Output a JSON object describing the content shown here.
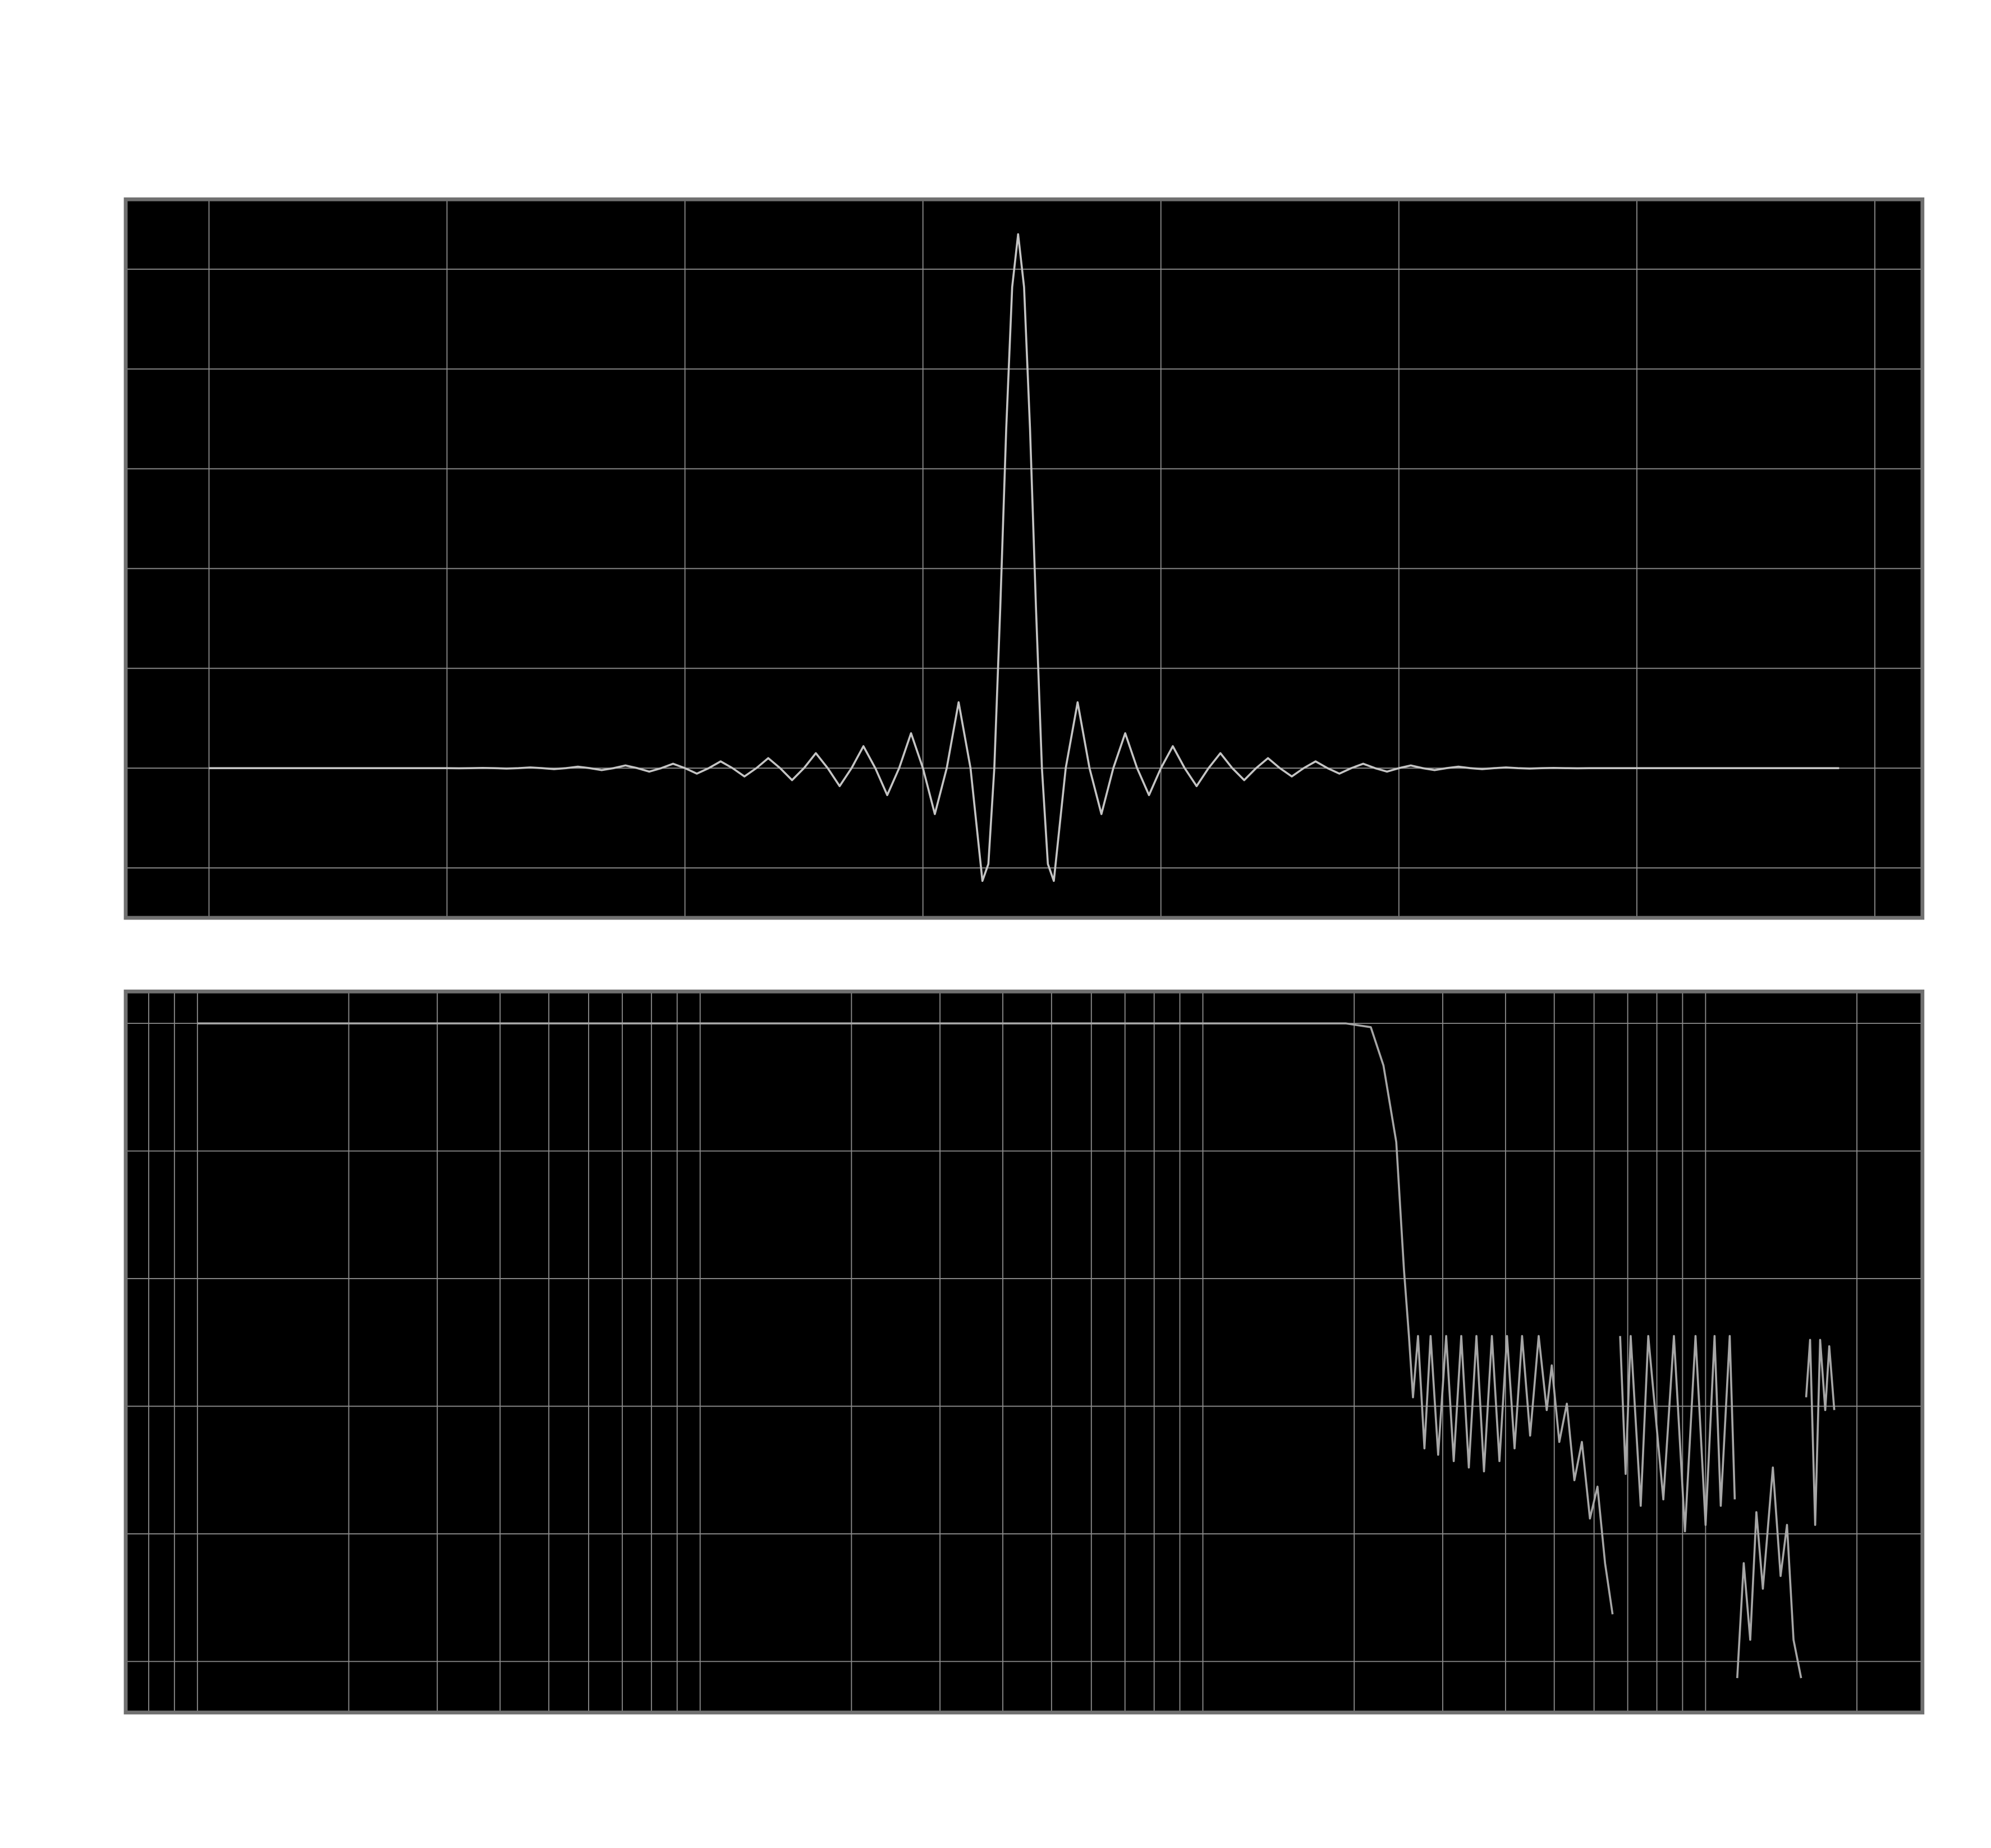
{
  "chart_data": [
    {
      "type": "line",
      "x": [
        0,
        9,
        9.5,
        10,
        10.5,
        11,
        11.5,
        12,
        12.5,
        13,
        13.5,
        14,
        14.5,
        15,
        15.5,
        16,
        16.5,
        17,
        17.5,
        18,
        18.5,
        19,
        19.5,
        20,
        20.5,
        21,
        21.5,
        22,
        22.5,
        23,
        23.5,
        24,
        24.5,
        25,
        25.5,
        26,
        26.5,
        27,
        27.5,
        28,
        28.5,
        29,
        29.5,
        30,
        30.5,
        31,
        31.5,
        32,
        32.5,
        32.75,
        33,
        33.25,
        33.5,
        33.75,
        34,
        34.25,
        34.5,
        34.75,
        35,
        35.25,
        35.5,
        36,
        36.5,
        37,
        37.5,
        38,
        38.5,
        39,
        39.5,
        40,
        40.5,
        41,
        41.5,
        42,
        42.5,
        43,
        43.5,
        44,
        44.5,
        45,
        45.5,
        46,
        46.5,
        47,
        47.5,
        48,
        48.5,
        49,
        49.5,
        50,
        50.5,
        51,
        51.5,
        52,
        52.5,
        53,
        53.5,
        54,
        54.5,
        55,
        55.5,
        56,
        56.5,
        57,
        57.5,
        58,
        58.5,
        59,
        68.5
      ],
      "values": [
        0,
        0,
        0,
        0,
        -0.001,
        0,
        0.002,
        0,
        -0.004,
        0,
        0.007,
        0,
        -0.01,
        0,
        0.015,
        0,
        -0.02,
        0,
        0.027,
        0,
        -0.035,
        0,
        0.044,
        0,
        -0.055,
        0,
        0.068,
        0,
        -0.083,
        0,
        0.1,
        0,
        -0.12,
        0,
        0.15,
        0,
        -0.18,
        0,
        0.22,
        0,
        -0.27,
        0,
        0.35,
        0,
        -0.46,
        0,
        0.66,
        0,
        -1.13,
        -0.96,
        0,
        1.61,
        3.4,
        4.82,
        5.35,
        4.82,
        3.4,
        1.61,
        0,
        -0.96,
        -1.13,
        0,
        0.66,
        0,
        -0.46,
        0,
        0.35,
        0,
        -0.27,
        0,
        0.22,
        0,
        -0.18,
        0,
        0.15,
        0,
        -0.12,
        0,
        0.1,
        0,
        -0.083,
        0,
        0.068,
        0,
        -0.055,
        0,
        0.044,
        0,
        -0.035,
        0,
        0.027,
        0,
        -0.02,
        0,
        0.015,
        0,
        -0.01,
        0,
        0.007,
        0,
        -0.004,
        0,
        0.002,
        0,
        -0.001,
        0,
        0,
        0,
        0
      ],
      "color": "#c4c4c4",
      "xlim": [
        -3.5,
        72
      ],
      "ylim": [
        -1.5,
        5.7
      ],
      "xticks": [
        0,
        10,
        20,
        30,
        40,
        50,
        60,
        70
      ],
      "yticks": [
        -1,
        0,
        1,
        2,
        3,
        4,
        5
      ],
      "grid": true
    },
    {
      "type": "line",
      "x": [
        10,
        1923,
        2158,
        2287,
        2425,
        2512,
        2570,
        2618,
        2679,
        2759,
        2838,
        2938,
        3048,
        3155,
        3266,
        3381,
        3501,
        3624,
        3758,
        3890,
        4027,
        4169,
        4315,
        4477,
        4656,
        4831,
        4943,
        5117,
        5297,
        5483,
        5675,
        5888,
        6095,
        6310,
        6531,
        6650,
        6761,
        6934,
        7096,
        7430,
        7691,
        8241,
        8650,
        9099,
        9550,
        10000,
        10420,
        10720,
        11170,
        11430,
        11500,
        11560,
        11910,
        12270,
        12620,
        13000,
        13610,
        14100,
        14520,
        14960,
        15490,
        15700,
        15850,
        16140,
        16520,
        16900,
        17300,
        17620,
        18030
      ],
      "values": [
        0,
        0,
        -0.6,
        -6.6,
        -18.6,
        -38.6,
        -49,
        -58.6,
        -49,
        -66.6,
        -49,
        -67.6,
        -49,
        -68.6,
        -49,
        -69.6,
        -49,
        -70.2,
        -49,
        -68.6,
        -49,
        -66.6,
        -49,
        -64.6,
        -49,
        -60.6,
        -53.6,
        -65.6,
        -59.6,
        -71.6,
        -65.6,
        -77.6,
        -72.6,
        -84.6,
        -92.6,
        null,
        -49,
        -70.6,
        -49,
        -75.6,
        -49,
        -74.6,
        -49,
        -79.6,
        -49,
        -78.6,
        -49,
        -75.6,
        -49,
        -74.6,
        null,
        -102.6,
        -84.6,
        -96.6,
        -76.6,
        -88.6,
        -69.6,
        -86.6,
        -78.6,
        -96.6,
        -102.6,
        null,
        -58.6,
        -49.6,
        -78.6,
        -49.6,
        -60.6,
        -50.6,
        -60.6
      ],
      "color": "#a6a6a6",
      "xscale": "log",
      "xlim": [
        7.2,
        27000
      ],
      "ylim": [
        -108,
        5
      ],
      "xticks": [
        8,
        9,
        10,
        20,
        30,
        40,
        50,
        60,
        70,
        80,
        90,
        100,
        200,
        300,
        400,
        500,
        600,
        700,
        800,
        900,
        1000,
        2000,
        3000,
        4000,
        5000,
        6000,
        7000,
        8000,
        9000,
        10000,
        20000
      ],
      "yticks": [
        0,
        -20,
        -40,
        -60,
        -80,
        -100
      ],
      "grid": true
    }
  ]
}
